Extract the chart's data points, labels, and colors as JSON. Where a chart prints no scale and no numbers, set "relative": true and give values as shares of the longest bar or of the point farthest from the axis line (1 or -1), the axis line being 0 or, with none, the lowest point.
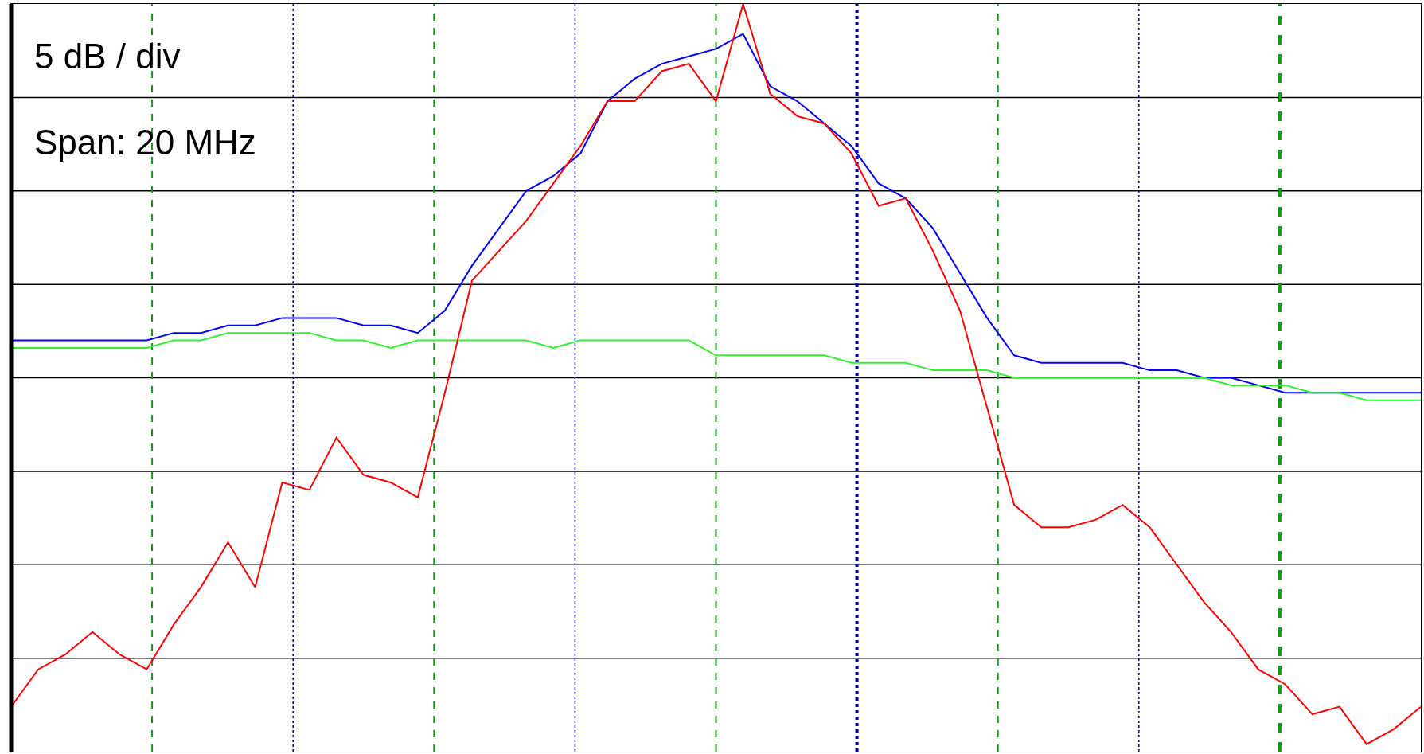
{
  "chart_data": {
    "type": "line",
    "relative": true,
    "grid": true,
    "marker": "none",
    "line_style": "solid",
    "annotations": [
      "5 dB / div",
      "Span: 20 MHz"
    ],
    "categories": [
      null,
      null,
      null,
      null,
      null,
      null,
      null,
      null,
      null,
      null,
      null,
      null,
      null,
      null,
      null,
      null,
      null,
      null,
      null,
      null,
      null,
      null,
      null,
      null,
      null,
      null,
      null,
      null,
      null,
      null,
      null,
      null,
      null,
      null,
      null,
      null,
      null,
      null,
      null,
      null,
      null,
      null,
      null,
      null,
      null,
      null,
      null,
      null,
      null,
      null,
      null,
      null,
      null
    ],
    "series": [
      {
        "color": "#0000ff",
        "values": [
          0.55,
          0.55,
          0.55,
          0.55,
          0.55,
          0.55,
          0.56,
          0.56,
          0.57,
          0.57,
          0.58,
          0.58,
          0.58,
          0.57,
          0.57,
          0.56,
          0.59,
          0.65,
          0.7,
          0.75,
          0.77,
          0.8,
          0.87,
          0.9,
          0.92,
          0.93,
          0.94,
          0.96,
          0.89,
          0.87,
          0.84,
          0.81,
          0.76,
          0.74,
          0.7,
          0.64,
          0.58,
          0.53,
          0.52,
          0.52,
          0.52,
          0.52,
          0.51,
          0.51,
          0.5,
          0.5,
          0.49,
          0.48,
          0.48,
          0.48,
          0.48,
          0.48,
          0.48
        ]
      },
      {
        "color": "#33ee33",
        "values": [
          0.54,
          0.54,
          0.54,
          0.54,
          0.54,
          0.54,
          0.55,
          0.55,
          0.56,
          0.56,
          0.56,
          0.56,
          0.55,
          0.55,
          0.54,
          0.55,
          0.55,
          0.55,
          0.55,
          0.55,
          0.54,
          0.55,
          0.55,
          0.55,
          0.55,
          0.55,
          0.53,
          0.53,
          0.53,
          0.53,
          0.53,
          0.52,
          0.52,
          0.52,
          0.51,
          0.51,
          0.51,
          0.5,
          0.5,
          0.5,
          0.5,
          0.5,
          0.5,
          0.5,
          0.5,
          0.49,
          0.49,
          0.49,
          0.48,
          0.48,
          0.47,
          0.47,
          0.47
        ]
      },
      {
        "color": "#ff0000",
        "values": [
          0.06,
          0.11,
          0.13,
          0.16,
          0.13,
          0.11,
          0.17,
          0.22,
          0.28,
          0.22,
          0.36,
          0.35,
          0.42,
          0.37,
          0.36,
          0.34,
          0.48,
          0.63,
          0.67,
          0.71,
          0.76,
          0.81,
          0.87,
          0.87,
          0.91,
          0.92,
          0.87,
          1.0,
          0.88,
          0.85,
          0.84,
          0.8,
          0.73,
          0.74,
          0.67,
          0.59,
          0.46,
          0.33,
          0.3,
          0.3,
          0.31,
          0.33,
          0.3,
          0.25,
          0.2,
          0.16,
          0.11,
          0.09,
          0.05,
          0.06,
          0.01,
          0.03,
          0.06
        ]
      }
    ]
  }
}
